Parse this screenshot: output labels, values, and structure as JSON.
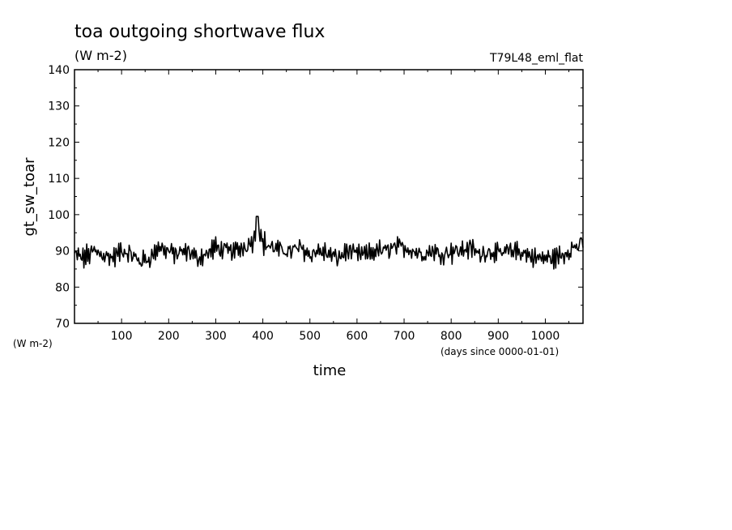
{
  "chart_data": {
    "type": "line",
    "title": "toa outgoing shortwave flux",
    "subtitle": "(W m-2)",
    "experiment": "T79L48_eml_flat",
    "xlabel": "time",
    "x_units": "(days since 0000-01-01)",
    "ylabel": "gt_sw_toar",
    "y_units": "(W m-2)",
    "xlim": [
      0,
      1080
    ],
    "ylim": [
      70,
      140
    ],
    "xticks": [
      100,
      200,
      300,
      400,
      500,
      600,
      700,
      800,
      900,
      1000
    ],
    "yticks": [
      70,
      80,
      90,
      100,
      110,
      120,
      130,
      140
    ],
    "series": [
      {
        "x": [
          0,
          20,
          40,
          60,
          80,
          100,
          120,
          140,
          160,
          180,
          200,
          220,
          240,
          260,
          280,
          300,
          320,
          340,
          360,
          380,
          390,
          400,
          420,
          440,
          460,
          480,
          500,
          520,
          540,
          560,
          580,
          600,
          620,
          640,
          660,
          680,
          700,
          720,
          740,
          760,
          780,
          800,
          820,
          840,
          860,
          880,
          900,
          920,
          940,
          960,
          980,
          1000,
          1020,
          1040,
          1060,
          1080
        ],
        "y": [
          89,
          88,
          90,
          89,
          88,
          90,
          89,
          87,
          88,
          91,
          90,
          89,
          90,
          88,
          89,
          91,
          90,
          90,
          91,
          93,
          97,
          92,
          91,
          90,
          90,
          91,
          89,
          90,
          89,
          88,
          90,
          89,
          89,
          90,
          90,
          91,
          91,
          90,
          89,
          90,
          89,
          90,
          90,
          91,
          89,
          90,
          89,
          90,
          90,
          89,
          88,
          88,
          88,
          89,
          91,
          92
        ],
        "amplitude": [
          4,
          4,
          4,
          4,
          4,
          4,
          4,
          4,
          4,
          4,
          4,
          4,
          4,
          4,
          4,
          4,
          4,
          4,
          4,
          4,
          4,
          4,
          4,
          4,
          4,
          4,
          4,
          4,
          4,
          4,
          4,
          4,
          4,
          4,
          4,
          4,
          4,
          4,
          4,
          4,
          4,
          4,
          4,
          4,
          4,
          4,
          4,
          4,
          4,
          4,
          4,
          4,
          4,
          4,
          4,
          4
        ],
        "color": "#000000"
      }
    ]
  }
}
